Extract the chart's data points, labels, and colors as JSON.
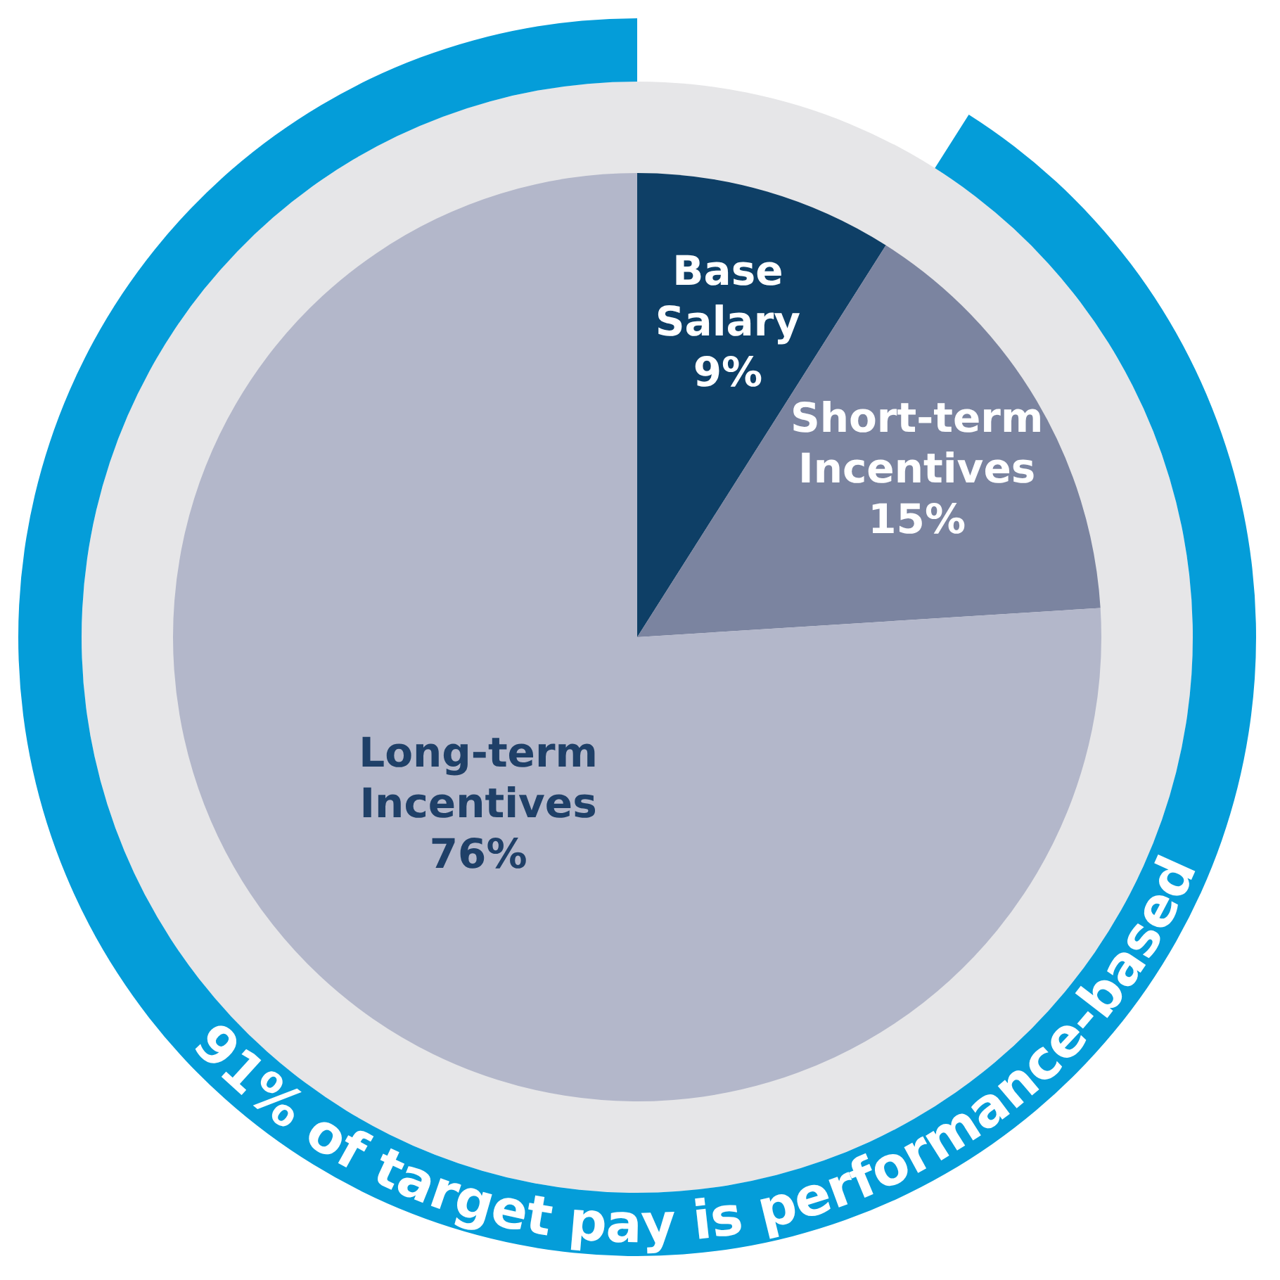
{
  "chart_data": {
    "type": "pie",
    "categories": [
      "Base Salary",
      "Short-term Incentives",
      "Long-term Incentives"
    ],
    "values": [
      9,
      15,
      76
    ],
    "colors": [
      "#0e3f66",
      "#7b84a0",
      "#b3b7ca"
    ],
    "value_labels": [
      "9%",
      "15%",
      "76%"
    ],
    "annotations": [
      "91% of target pay is performance-based"
    ]
  }
}
